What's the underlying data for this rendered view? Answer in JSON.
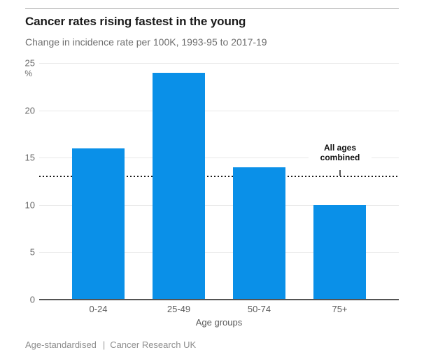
{
  "header": {
    "title": "Cancer rates rising fastest in the young",
    "subtitle": "Change in incidence rate per 100K, 1993-95 to 2017-19"
  },
  "chart_data": {
    "type": "bar",
    "categories": [
      "0-24",
      "25-49",
      "50-74",
      "75+"
    ],
    "values": [
      16,
      24,
      14,
      10
    ],
    "title": "Cancer rates rising fastest in the young",
    "subtitle": "Change in incidence rate per 100K, 1993-95 to 2017-19",
    "xlabel": "Age groups",
    "ylabel": "%",
    "ylim": [
      0,
      25
    ],
    "yticks": [
      0,
      5,
      10,
      15,
      20,
      25
    ],
    "grid": true,
    "legend_position": "none",
    "reference_line": {
      "value": 13,
      "label": "All ages combined"
    },
    "bar_color": "#0a90e8"
  },
  "footer": {
    "note": "Age-standardised",
    "separator": "|",
    "source": "Cancer Research UK"
  },
  "colors": {
    "bar": "#0a90e8",
    "grid": "#e9e9e9",
    "axis": "#545454",
    "reference_line": "#1a1a1a",
    "title_text": "#1a1a1a",
    "muted_text": "#6f6f6f",
    "footer_text": "#8e8e8e",
    "top_rule": "#b0b0b0"
  }
}
